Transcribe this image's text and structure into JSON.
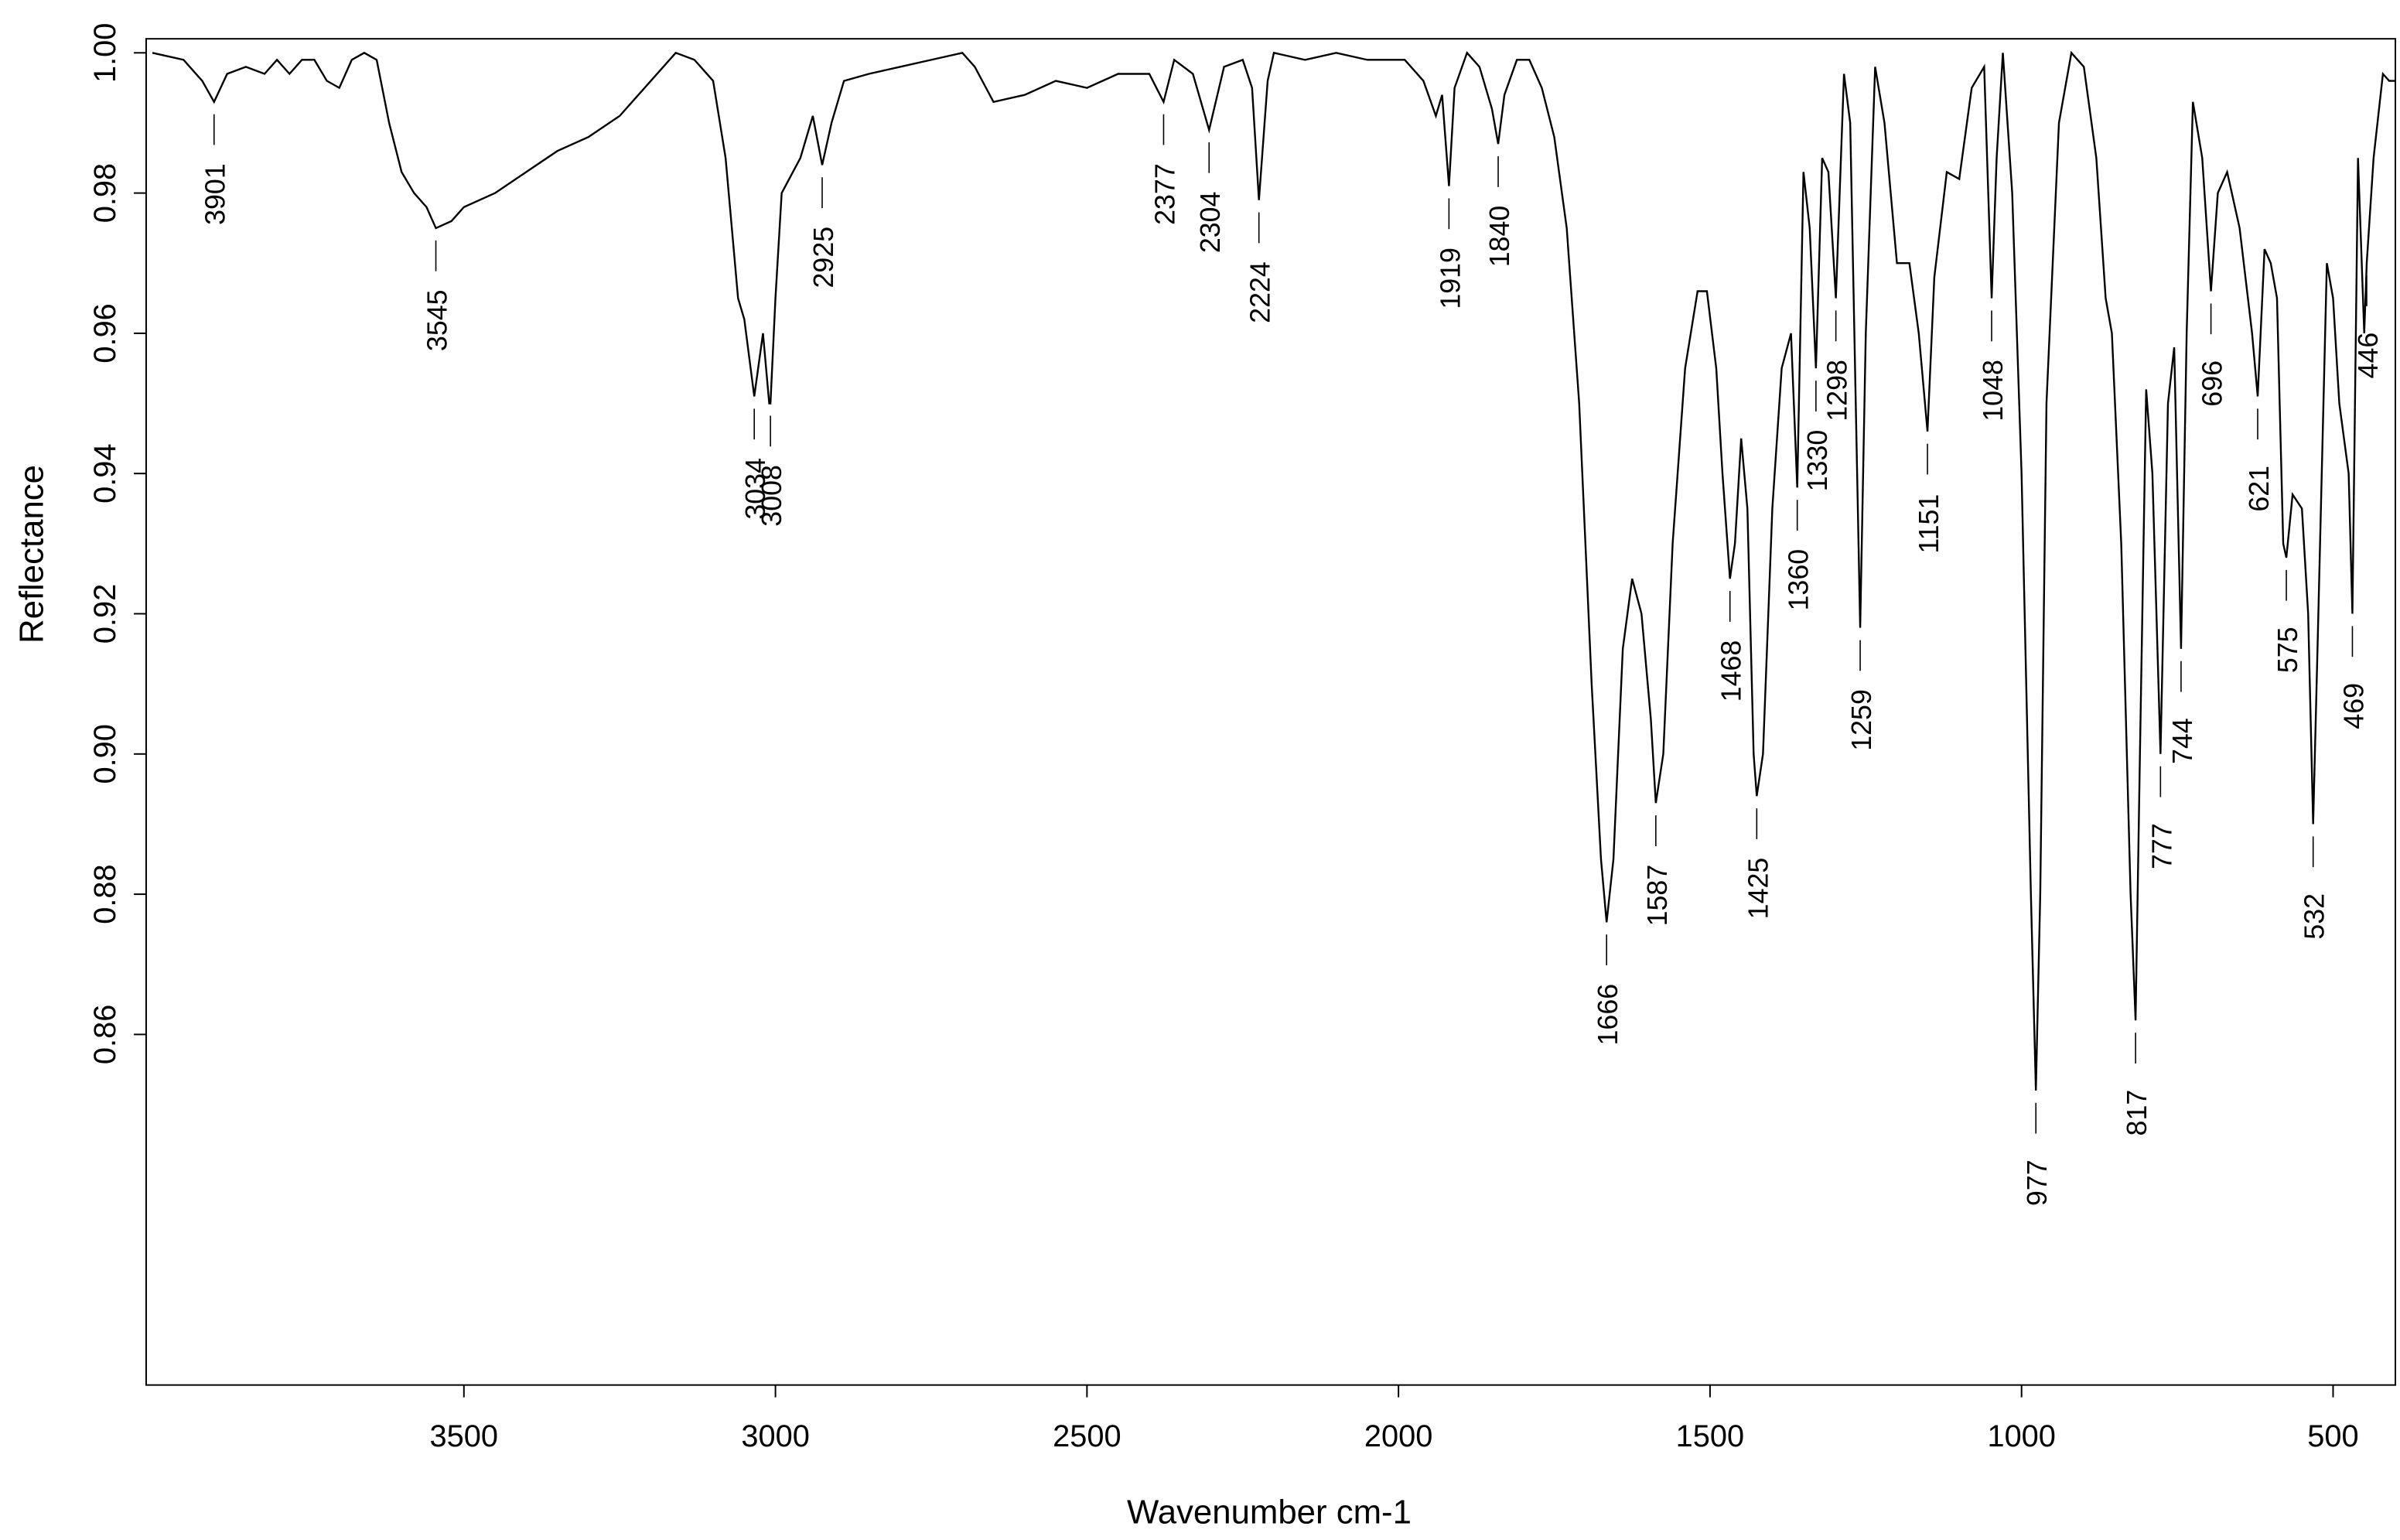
{
  "chart_data": {
    "type": "line",
    "xlabel": "Wavenumber cm-1",
    "ylabel": "Reflectance",
    "color": "#000000",
    "xlim": [
      4010,
      400
    ],
    "ylim": [
      0.81,
      1.002
    ],
    "xticks": [
      3500,
      3000,
      2500,
      2000,
      1500,
      1000,
      500
    ],
    "yticks": [
      {
        "value": 0.86,
        "label": "0.86"
      },
      {
        "value": 0.88,
        "label": "0.88"
      },
      {
        "value": 0.9,
        "label": "0.90"
      },
      {
        "value": 0.92,
        "label": "0.92"
      },
      {
        "value": 0.94,
        "label": "0.94"
      },
      {
        "value": 0.96,
        "label": "0.96"
      },
      {
        "value": 0.98,
        "label": "0.98"
      },
      {
        "value": 1.0,
        "label": "1.00"
      }
    ],
    "x": [
      4000,
      3950,
      3920,
      3901,
      3880,
      3850,
      3820,
      3800,
      3780,
      3760,
      3740,
      3720,
      3700,
      3680,
      3660,
      3640,
      3620,
      3600,
      3580,
      3560,
      3545,
      3520,
      3500,
      3450,
      3400,
      3350,
      3300,
      3250,
      3200,
      3160,
      3130,
      3100,
      3080,
      3060,
      3050,
      3034,
      3020,
      3010,
      3008,
      3000,
      2990,
      2960,
      2940,
      2925,
      2910,
      2890,
      2850,
      2800,
      2750,
      2700,
      2680,
      2650,
      2600,
      2550,
      2500,
      2450,
      2400,
      2377,
      2360,
      2330,
      2304,
      2280,
      2250,
      2235,
      2224,
      2210,
      2200,
      2150,
      2100,
      2050,
      2000,
      1990,
      1960,
      1940,
      1930,
      1919,
      1910,
      1890,
      1870,
      1850,
      1840,
      1830,
      1810,
      1790,
      1770,
      1750,
      1730,
      1710,
      1690,
      1675,
      1666,
      1655,
      1640,
      1625,
      1610,
      1595,
      1587,
      1575,
      1560,
      1540,
      1520,
      1505,
      1490,
      1480,
      1468,
      1460,
      1450,
      1440,
      1430,
      1425,
      1415,
      1400,
      1385,
      1370,
      1360,
      1350,
      1340,
      1330,
      1320,
      1310,
      1298,
      1285,
      1275,
      1259,
      1250,
      1235,
      1220,
      1200,
      1180,
      1165,
      1151,
      1140,
      1120,
      1100,
      1080,
      1060,
      1048,
      1040,
      1030,
      1015,
      1000,
      985,
      977,
      970,
      960,
      940,
      920,
      900,
      880,
      865,
      855,
      840,
      825,
      817,
      810,
      800,
      790,
      777,
      765,
      755,
      744,
      735,
      725,
      710,
      696,
      685,
      670,
      650,
      630,
      621,
      610,
      600,
      590,
      580,
      575,
      565,
      550,
      540,
      532,
      525,
      510,
      500,
      490,
      475,
      469,
      460,
      450,
      446,
      435,
      420,
      410,
      400
    ],
    "values": [
      1.0,
      0.999,
      0.996,
      0.993,
      0.997,
      0.998,
      0.997,
      0.999,
      0.997,
      0.999,
      0.999,
      0.996,
      0.995,
      0.999,
      1.0,
      0.999,
      0.99,
      0.983,
      0.98,
      0.978,
      0.975,
      0.976,
      0.978,
      0.98,
      0.983,
      0.986,
      0.988,
      0.991,
      0.996,
      1.0,
      0.999,
      0.996,
      0.985,
      0.965,
      0.962,
      0.951,
      0.96,
      0.95,
      0.95,
      0.965,
      0.98,
      0.985,
      0.991,
      0.984,
      0.99,
      0.996,
      0.997,
      0.998,
      0.999,
      1.0,
      0.998,
      0.993,
      0.994,
      0.996,
      0.995,
      0.997,
      0.997,
      0.993,
      0.999,
      0.997,
      0.989,
      0.998,
      0.999,
      0.995,
      0.979,
      0.996,
      1.0,
      0.999,
      1.0,
      0.999,
      0.999,
      0.999,
      0.996,
      0.991,
      0.994,
      0.981,
      0.995,
      1.0,
      0.998,
      0.992,
      0.987,
      0.994,
      0.999,
      0.999,
      0.995,
      0.988,
      0.975,
      0.95,
      0.91,
      0.885,
      0.876,
      0.885,
      0.915,
      0.925,
      0.92,
      0.905,
      0.893,
      0.9,
      0.93,
      0.955,
      0.966,
      0.966,
      0.955,
      0.94,
      0.925,
      0.93,
      0.945,
      0.935,
      0.9,
      0.894,
      0.9,
      0.935,
      0.955,
      0.96,
      0.938,
      0.983,
      0.975,
      0.955,
      0.985,
      0.983,
      0.965,
      0.997,
      0.99,
      0.918,
      0.96,
      0.998,
      0.99,
      0.97,
      0.97,
      0.96,
      0.946,
      0.968,
      0.983,
      0.982,
      0.995,
      0.998,
      0.965,
      0.985,
      1.0,
      0.98,
      0.94,
      0.88,
      0.852,
      0.88,
      0.95,
      0.99,
      1.0,
      0.998,
      0.985,
      0.965,
      0.96,
      0.93,
      0.88,
      0.862,
      0.9,
      0.952,
      0.94,
      0.9,
      0.95,
      0.958,
      0.915,
      0.96,
      0.993,
      0.985,
      0.966,
      0.98,
      0.983,
      0.975,
      0.96,
      0.951,
      0.972,
      0.97,
      0.965,
      0.93,
      0.928,
      0.937,
      0.935,
      0.92,
      0.89,
      0.915,
      0.97,
      0.965,
      0.95,
      0.94,
      0.92,
      0.985,
      0.96,
      0.97,
      0.985,
      0.997,
      0.996,
      0.996
    ],
    "peaks": [
      3901,
      3545,
      3034,
      3008,
      2925,
      2377,
      2304,
      2224,
      1919,
      1840,
      1666,
      1587,
      1468,
      1425,
      1360,
      1330,
      1298,
      1259,
      1151,
      1048,
      977,
      817,
      777,
      744,
      696,
      621,
      575,
      532,
      469,
      446
    ]
  }
}
